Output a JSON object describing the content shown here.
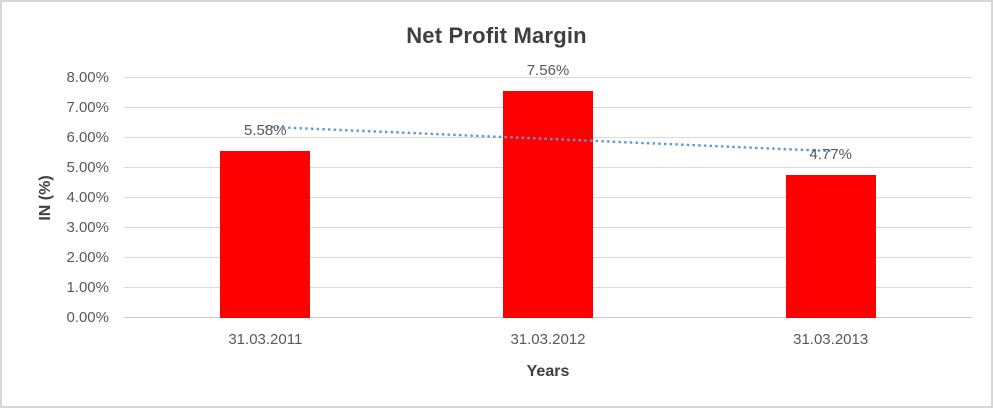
{
  "chart_data": {
    "type": "bar",
    "title": "Net Profit Margin",
    "xlabel": "Years",
    "ylabel": "IN (%)",
    "categories": [
      "31.03.2011",
      "31.03.2012",
      "31.03.2013"
    ],
    "values": [
      5.58,
      7.56,
      4.77
    ],
    "data_labels": [
      "5.58%",
      "7.56%",
      "4.77%"
    ],
    "ylim": [
      0,
      8
    ],
    "ytick_step": 1,
    "ytick_labels": [
      "0.00%",
      "1.00%",
      "2.00%",
      "3.00%",
      "4.00%",
      "5.00%",
      "6.00%",
      "7.00%",
      "8.00%"
    ],
    "grid": true,
    "legend": false,
    "bar_color": "#ff0000",
    "trendline": {
      "type": "linear",
      "style": "dotted",
      "color": "#5b9bd5",
      "start_value": 6.375,
      "end_value": 5.565
    },
    "colors": {
      "title_text": "#3f3f3f",
      "tick_text": "#595959",
      "gridline": "#d9d9d9",
      "axis_line": "#c9c9c9",
      "frame_border": "#d6d6d6",
      "background": "#ffffff"
    }
  }
}
